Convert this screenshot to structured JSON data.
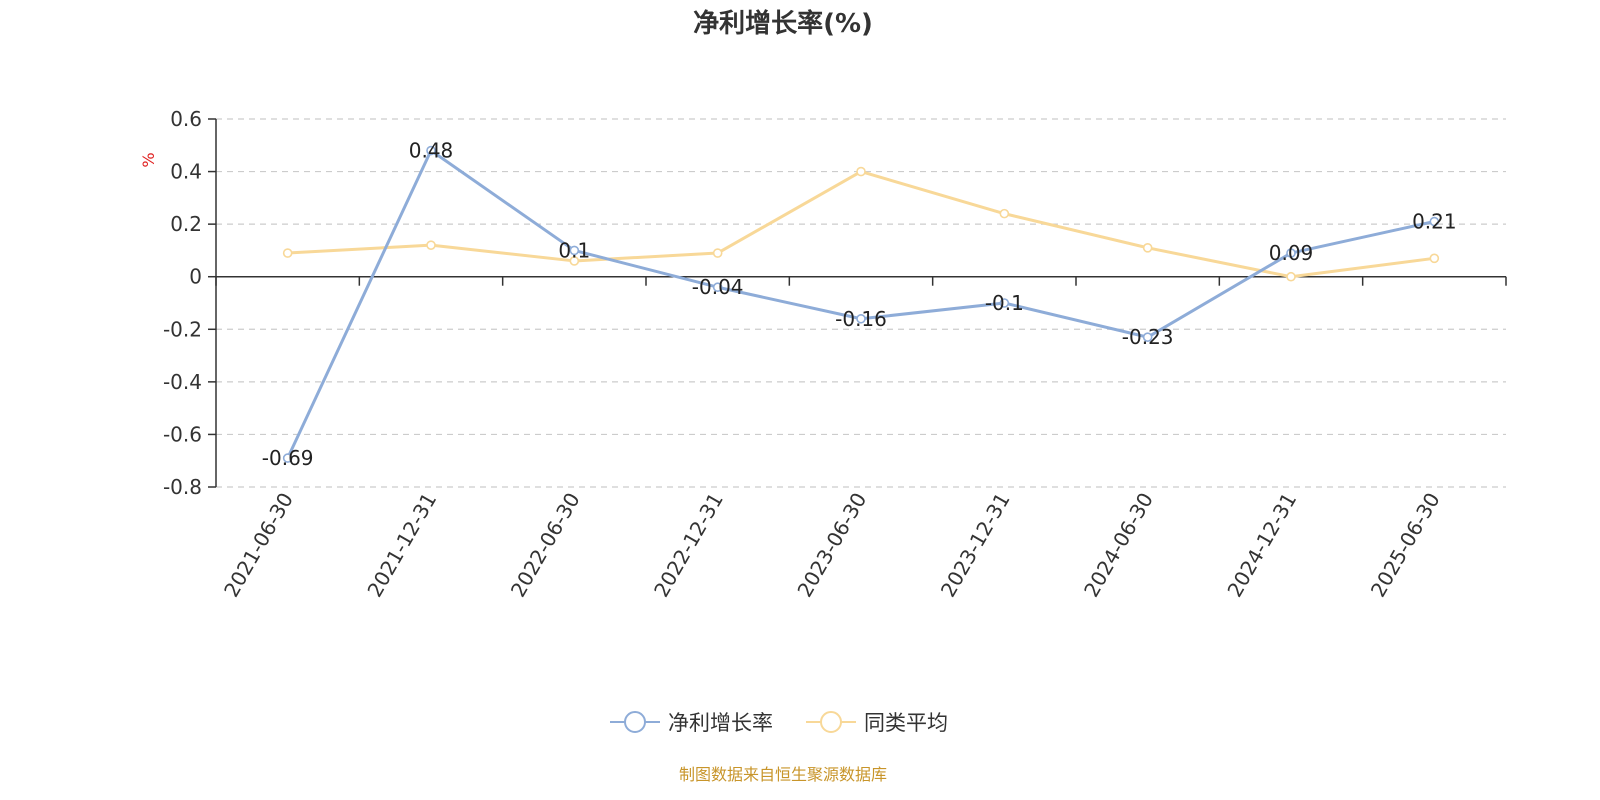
{
  "chart_data": {
    "type": "line",
    "title": "净利增长率(%)",
    "ylabel": "%",
    "xlabel": "",
    "ylim": [
      -0.8,
      0.6
    ],
    "yticks": [
      0.6,
      0.4,
      0.2,
      0,
      -0.2,
      -0.4,
      -0.6,
      -0.8
    ],
    "categories": [
      "2021-06-30",
      "2021-12-31",
      "2022-06-30",
      "2022-12-31",
      "2023-06-30",
      "2023-12-31",
      "2024-06-30",
      "2024-12-31",
      "2025-06-30"
    ],
    "grid": true,
    "legend_position": "bottom-center",
    "series": [
      {
        "name": "净利增长率",
        "color": "#8eacd8",
        "values": [
          -0.69,
          0.48,
          0.1,
          -0.04,
          -0.16,
          -0.1,
          -0.23,
          0.09,
          0.21
        ],
        "labels": [
          "-0.69",
          "0.48",
          "0.1",
          "-0.04",
          "-0.16",
          "-0.1",
          "-0.23",
          "0.09",
          "0.21"
        ]
      },
      {
        "name": "同类平均",
        "color": "#f8d898",
        "values": [
          0.09,
          0.12,
          0.06,
          0.09,
          0.4,
          0.24,
          0.11,
          0.0,
          0.07
        ]
      }
    ]
  },
  "source_text": "制图数据来自恒生聚源数据库",
  "colors": {
    "unit_label": "#e02020",
    "source_text": "#c8952a",
    "axis": "#333333",
    "grid": "#cccccc"
  }
}
